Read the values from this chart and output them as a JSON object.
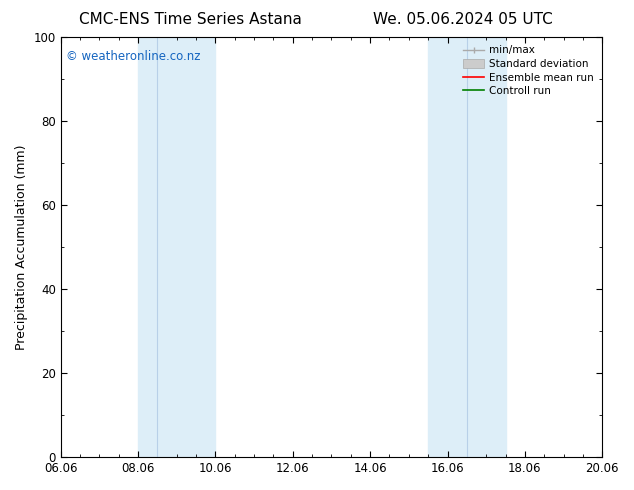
{
  "title_left": "CMC-ENS Time Series Astana",
  "title_right": "We. 05.06.2024 05 UTC",
  "ylabel": "Precipitation Accumulation (mm)",
  "ylim": [
    0,
    100
  ],
  "yticks": [
    0,
    20,
    40,
    60,
    80,
    100
  ],
  "xtick_labels": [
    "06.06",
    "08.06",
    "10.06",
    "12.06",
    "14.06",
    "16.06",
    "18.06",
    "20.06"
  ],
  "xtick_positions": [
    0,
    2,
    4,
    6,
    8,
    10,
    12,
    14
  ],
  "xlim": [
    0,
    14
  ],
  "shaded_regions": [
    {
      "xmin": 2.0,
      "xmax": 2.5,
      "color": "#ddeeff"
    },
    {
      "xmin": 2.5,
      "xmax": 4.0,
      "color": "#ddeeff"
    },
    {
      "xmin": 9.5,
      "xmax": 10.5,
      "color": "#ddeeff"
    },
    {
      "xmin": 10.5,
      "xmax": 11.5,
      "color": "#ddeeff"
    }
  ],
  "shaded_pairs": [
    {
      "xmin": 2.0,
      "xmax": 4.0
    },
    {
      "xmin": 9.5,
      "xmax": 11.5
    }
  ],
  "inner_lines": [
    2.5,
    10.5
  ],
  "shade_color": "#ddeef8",
  "inner_line_color": "#b8d0e8",
  "watermark_text": "© weatheronline.co.nz",
  "watermark_color": "#1565C0",
  "bg_color": "#ffffff",
  "plot_bg_color": "#ffffff",
  "title_fontsize": 11,
  "axis_fontsize": 9,
  "tick_fontsize": 8.5
}
